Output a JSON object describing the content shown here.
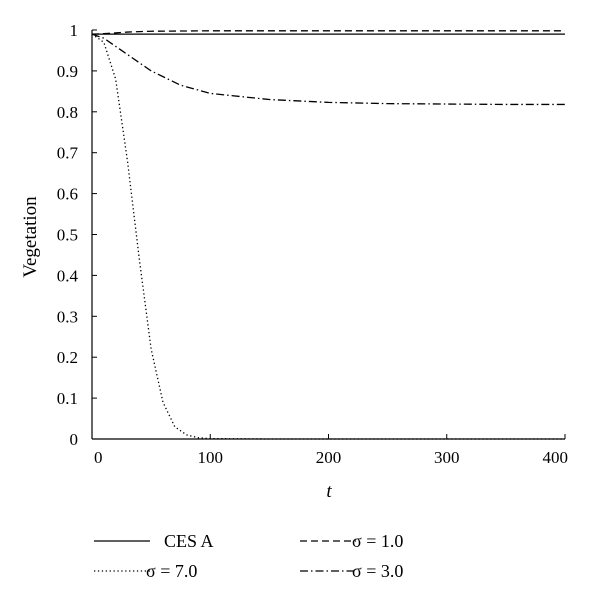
{
  "chart_data": {
    "type": "line",
    "title": "",
    "xlabel": "t",
    "ylabel": "Vegetation",
    "xlim": [
      0,
      400
    ],
    "ylim": [
      0,
      1
    ],
    "x_ticks": [
      "0",
      "100",
      "200",
      "300",
      "400"
    ],
    "y_ticks": [
      "0",
      "0.1",
      "0.2",
      "0.3",
      "0.4",
      "0.5",
      "0.6",
      "0.7",
      "0.8",
      "0.9",
      "1"
    ],
    "grid": false,
    "legend_position": "below",
    "series": [
      {
        "name": "CES A",
        "style": "solid",
        "x": [
          0,
          10,
          20,
          50,
          100,
          200,
          300,
          400
        ],
        "y": [
          0.99,
          0.99,
          0.99,
          0.99,
          0.99,
          0.99,
          0.99,
          0.99
        ]
      },
      {
        "name": "σ = 1.0",
        "style": "dashed",
        "x": [
          0,
          10,
          20,
          30,
          50,
          100,
          200,
          300,
          400
        ],
        "y": [
          0.99,
          0.991,
          0.993,
          0.995,
          0.997,
          0.998,
          0.998,
          0.998,
          0.998
        ]
      },
      {
        "name": "σ = 7.0",
        "style": "dotted",
        "x": [
          0,
          10,
          20,
          30,
          40,
          50,
          60,
          70,
          80,
          90,
          100,
          150,
          200,
          300,
          400
        ],
        "y": [
          0.99,
          0.97,
          0.88,
          0.68,
          0.44,
          0.22,
          0.09,
          0.03,
          0.01,
          0.003,
          0.001,
          0,
          0,
          0,
          0
        ]
      },
      {
        "name": "σ = 3.0",
        "style": "dashdot",
        "x": [
          0,
          10,
          25,
          50,
          75,
          100,
          150,
          200,
          250,
          300,
          350,
          400
        ],
        "y": [
          0.99,
          0.98,
          0.95,
          0.9,
          0.865,
          0.845,
          0.83,
          0.823,
          0.82,
          0.819,
          0.818,
          0.818
        ]
      }
    ]
  }
}
